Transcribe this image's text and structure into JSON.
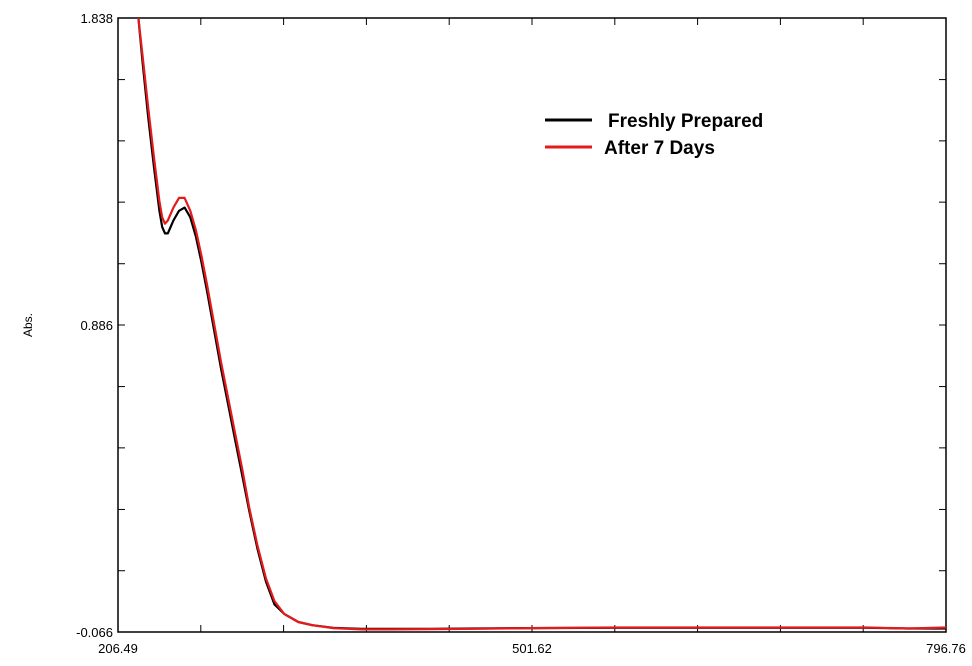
{
  "chart_data": {
    "type": "line",
    "xlabel": "",
    "ylabel": "Abs.",
    "xlim": [
      206.49,
      796.76
    ],
    "ylim": [
      -0.066,
      1.838
    ],
    "x_tick_labels": [
      "206.49",
      "501.62",
      "796.76"
    ],
    "y_tick_labels": [
      "1.838",
      "0.886",
      "-0.066"
    ],
    "x_ticks": [
      206.49,
      501.62,
      796.76
    ],
    "y_ticks": [
      1.838,
      0.886,
      -0.066
    ],
    "x_minor_ticks": [
      206.49,
      265.52,
      324.54,
      383.57,
      442.6,
      501.62,
      560.65,
      619.68,
      678.71,
      737.73,
      796.76
    ],
    "y_minor_ticks": [
      1.838,
      1.457,
      1.076,
      0.695,
      0.314,
      -0.066,
      1.647,
      1.267,
      0.886,
      0.505,
      0.124
    ],
    "legend_position": "top-right",
    "series": [
      {
        "name": "Freshly Prepared",
        "color": "#000000",
        "x": [
          221,
          224,
          228,
          232,
          236,
          238,
          240,
          242,
          244,
          246,
          250,
          254,
          258,
          262,
          266,
          270,
          275,
          280,
          285,
          290,
          295,
          300,
          306,
          312,
          318,
          325,
          335,
          345,
          360,
          380,
          400,
          430,
          460,
          500,
          560,
          620,
          680,
          740,
          770,
          796.76
        ],
        "y": [
          1.838,
          1.7,
          1.53,
          1.38,
          1.24,
          1.19,
          1.17,
          1.17,
          1.19,
          1.21,
          1.24,
          1.25,
          1.22,
          1.16,
          1.08,
          0.99,
          0.87,
          0.75,
          0.64,
          0.53,
          0.42,
          0.31,
          0.19,
          0.09,
          0.02,
          -0.01,
          -0.035,
          -0.045,
          -0.053,
          -0.056,
          -0.056,
          -0.056,
          -0.055,
          -0.054,
          -0.053,
          -0.053,
          -0.053,
          -0.053,
          -0.055,
          -0.055
        ]
      },
      {
        "name": "After 7 Days",
        "color": "#e41a1c",
        "x": [
          221,
          224,
          228,
          232,
          236,
          238,
          240,
          242,
          244,
          246,
          250,
          254,
          258,
          262,
          266,
          270,
          275,
          280,
          285,
          290,
          295,
          300,
          306,
          312,
          318,
          325,
          335,
          345,
          360,
          380,
          400,
          430,
          460,
          500,
          560,
          620,
          680,
          740,
          770,
          796.76
        ],
        "y": [
          1.838,
          1.72,
          1.56,
          1.41,
          1.27,
          1.22,
          1.2,
          1.21,
          1.23,
          1.25,
          1.28,
          1.28,
          1.24,
          1.18,
          1.1,
          1.01,
          0.89,
          0.77,
          0.66,
          0.55,
          0.44,
          0.32,
          0.2,
          0.1,
          0.03,
          -0.01,
          -0.035,
          -0.045,
          -0.054,
          -0.058,
          -0.058,
          -0.057,
          -0.056,
          -0.054,
          -0.052,
          -0.052,
          -0.052,
          -0.052,
          -0.055,
          -0.052
        ]
      }
    ]
  }
}
